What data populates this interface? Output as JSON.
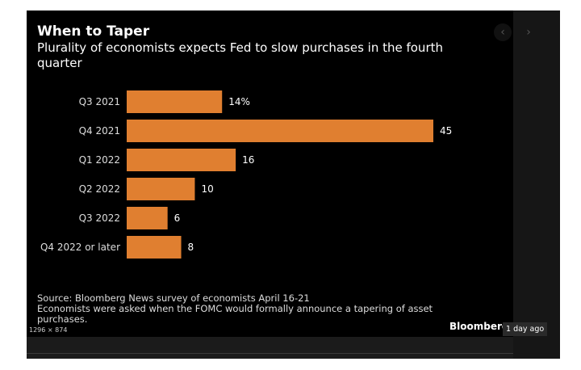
{
  "header": {
    "title": "When to Taper",
    "subtitle": "Plurality of economists expects Fed to slow purchases in the fourth quarter"
  },
  "chart_data": {
    "type": "bar",
    "orientation": "horizontal",
    "title": "When to Taper",
    "subtitle": "Plurality of economists expects Fed to slow purchases in the fourth quarter",
    "categories": [
      "Q3 2021",
      "Q4 2021",
      "Q1 2022",
      "Q2 2022",
      "Q3 2022",
      "Q4 2022 or later"
    ],
    "values": [
      14,
      45,
      16,
      10,
      6,
      8
    ],
    "data_labels": [
      "14%",
      "45",
      "16",
      "10",
      "6",
      "8"
    ],
    "unit": "%",
    "bar_color": "#e07f30",
    "xlim": [
      0,
      45
    ]
  },
  "footer": {
    "source": "Source: Bloomberg News survey of economists April 16-21",
    "note": "Economists were asked when the FOMC would formally announce a tapering of asset purchases.",
    "brand": "Bloomberg",
    "dimensions": "1296 × 874",
    "time_ago": "1 day ago"
  },
  "nav": {
    "prev": "‹",
    "next": "›"
  }
}
